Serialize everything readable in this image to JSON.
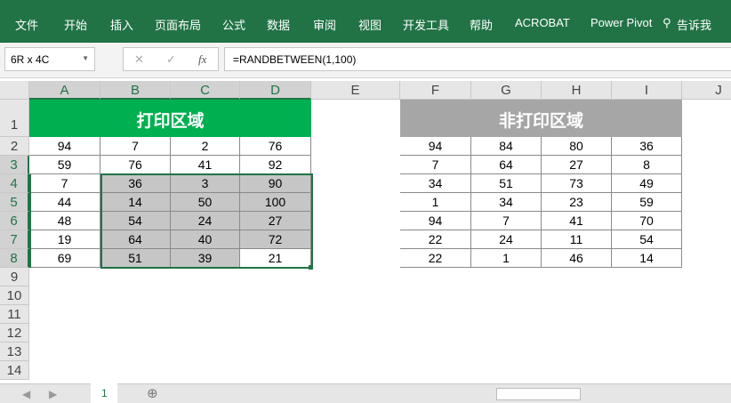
{
  "ribbon": {
    "tabs": [
      "文件",
      "开始",
      "插入",
      "页面布局",
      "公式",
      "数据",
      "审阅",
      "视图",
      "开发工具",
      "帮助",
      "ACROBAT",
      "Power Pivot",
      "告诉我"
    ],
    "color": "#217346"
  },
  "formula_bar": {
    "name_box": "6R x 4C",
    "cancel": "✕",
    "enter": "✓",
    "fx": "fx",
    "formula": "=RANDBETWEEN(1,100)"
  },
  "columns": [
    "A",
    "B",
    "C",
    "D",
    "E",
    "F",
    "G",
    "H",
    "I",
    "J"
  ],
  "rows": [
    "1",
    "2",
    "3",
    "4",
    "5",
    "6",
    "7",
    "8",
    "9",
    "10",
    "11",
    "12",
    "13",
    "14"
  ],
  "print_area": {
    "title": "打印区域",
    "color": "#00b050",
    "values": [
      [
        "94",
        "7",
        "2",
        "76"
      ],
      [
        "59",
        "76",
        "41",
        "92"
      ],
      [
        "7",
        "36",
        "3",
        "90"
      ],
      [
        "44",
        "14",
        "50",
        "100"
      ],
      [
        "48",
        "54",
        "24",
        "27"
      ],
      [
        "19",
        "64",
        "40",
        "72"
      ],
      [
        "69",
        "51",
        "39",
        "21"
      ]
    ]
  },
  "non_print_area": {
    "title": "非打印区域",
    "color": "#a6a6a6",
    "values": [
      [
        "94",
        "84",
        "80",
        "36"
      ],
      [
        "7",
        "64",
        "27",
        "8"
      ],
      [
        "34",
        "51",
        "73",
        "49"
      ],
      [
        "1",
        "34",
        "23",
        "59"
      ],
      [
        "94",
        "7",
        "41",
        "70"
      ],
      [
        "22",
        "24",
        "11",
        "54"
      ],
      [
        "22",
        "1",
        "46",
        "14"
      ]
    ]
  },
  "sheet_tabs": [
    "1"
  ]
}
